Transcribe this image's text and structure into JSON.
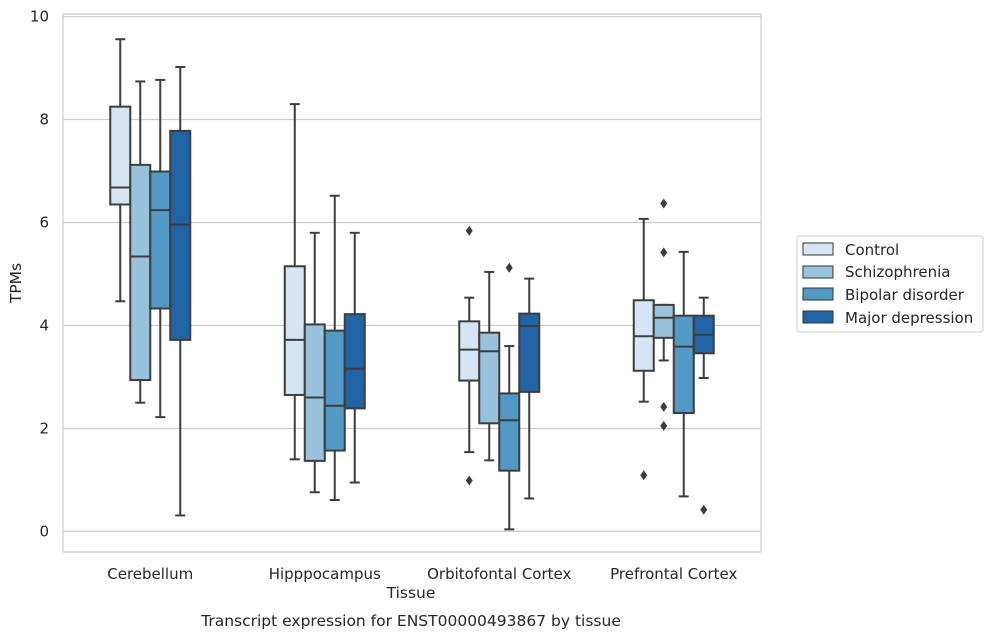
{
  "chart_data": {
    "type": "box",
    "title": "Transcript expression for ENST00000493867 by tissue",
    "xlabel": "Tissue",
    "ylabel": "TPMs",
    "ylim": [
      -0.4,
      10.05
    ],
    "yticks": [
      0,
      2,
      4,
      6,
      8,
      10
    ],
    "grid": "horizontal",
    "legend_position": "right",
    "categories": [
      "Cerebellum",
      "Hipppocampus",
      "Orbitofontal Cortex",
      "Prefrontal Cortex"
    ],
    "series": [
      {
        "name": "Control",
        "color": "#d6e5f4",
        "boxes": [
          {
            "whislo": 4.47,
            "q1": 6.35,
            "med": 6.68,
            "q3": 8.25,
            "whishi": 9.56,
            "fliers": []
          },
          {
            "whislo": 1.4,
            "q1": 2.65,
            "med": 3.72,
            "q3": 5.15,
            "whishi": 8.3,
            "fliers": []
          },
          {
            "whislo": 1.54,
            "q1": 2.93,
            "med": 3.53,
            "q3": 4.08,
            "whishi": 4.54,
            "fliers": [
              5.84,
              0.99
            ]
          },
          {
            "whislo": 2.52,
            "q1": 3.12,
            "med": 3.79,
            "q3": 4.49,
            "whishi": 6.07,
            "fliers": [
              1.09
            ]
          }
        ]
      },
      {
        "name": "Schizophrenia",
        "color": "#99c2dd",
        "boxes": [
          {
            "whislo": 2.5,
            "q1": 2.94,
            "med": 5.34,
            "q3": 7.12,
            "whishi": 8.74,
            "fliers": []
          },
          {
            "whislo": 0.76,
            "q1": 1.37,
            "med": 2.6,
            "q3": 4.02,
            "whishi": 5.8,
            "fliers": []
          },
          {
            "whislo": 1.38,
            "q1": 2.1,
            "med": 3.5,
            "q3": 3.86,
            "whishi": 5.04,
            "fliers": []
          },
          {
            "whislo": 3.32,
            "q1": 3.76,
            "med": 4.15,
            "q3": 4.4,
            "whishi": 4.4,
            "fliers": [
              6.37,
              5.42,
              2.42,
              2.05
            ]
          }
        ]
      },
      {
        "name": "Bipolar disorder",
        "color": "#5399c6",
        "boxes": [
          {
            "whislo": 2.22,
            "q1": 4.33,
            "med": 6.24,
            "q3": 6.99,
            "whishi": 8.77,
            "fliers": []
          },
          {
            "whislo": 0.61,
            "q1": 1.57,
            "med": 2.44,
            "q3": 3.9,
            "whishi": 6.52,
            "fliers": []
          },
          {
            "whislo": 0.04,
            "q1": 1.18,
            "med": 2.16,
            "q3": 2.68,
            "whishi": 3.6,
            "fliers": [
              5.12
            ]
          },
          {
            "whislo": 0.68,
            "q1": 2.3,
            "med": 3.59,
            "q3": 4.19,
            "whishi": 5.43,
            "fliers": []
          }
        ]
      },
      {
        "name": "Major depression",
        "color": "#2163a5",
        "boxes": [
          {
            "whislo": 0.31,
            "q1": 3.72,
            "med": 5.96,
            "q3": 7.78,
            "whishi": 9.02,
            "fliers": []
          },
          {
            "whislo": 0.95,
            "q1": 2.39,
            "med": 3.16,
            "q3": 4.22,
            "whishi": 5.8,
            "fliers": []
          },
          {
            "whislo": 0.64,
            "q1": 2.71,
            "med": 3.99,
            "q3": 4.23,
            "whishi": 4.91,
            "fliers": []
          },
          {
            "whislo": 2.98,
            "q1": 3.46,
            "med": 3.82,
            "q3": 4.19,
            "whishi": 4.54,
            "fliers": [
              0.42
            ]
          }
        ]
      }
    ]
  }
}
